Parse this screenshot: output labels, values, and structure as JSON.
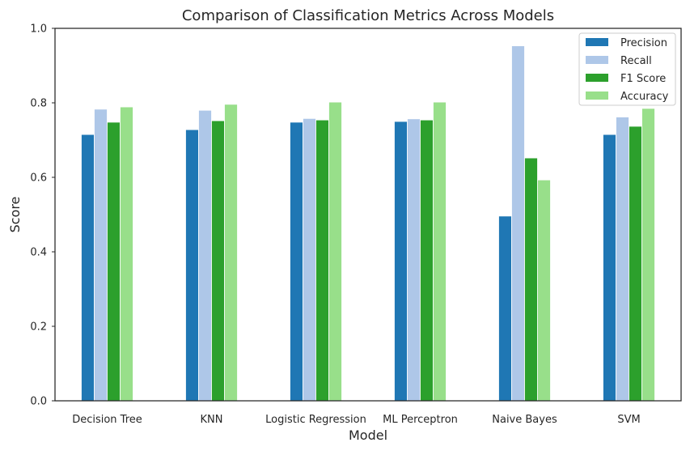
{
  "chart_data": {
    "type": "bar",
    "title": "Comparison of Classification Metrics Across Models",
    "xlabel": "Model",
    "ylabel": "Score",
    "ylim": [
      0,
      1.0
    ],
    "yticks": [
      "0.0",
      "0.2",
      "0.4",
      "0.6",
      "0.8",
      "1.0"
    ],
    "grid": false,
    "legend_position": "top-right",
    "categories": [
      "Decision Tree",
      "KNN",
      "Logistic Regression",
      "ML Perceptron",
      "Naive Bayes",
      "SVM"
    ],
    "series": [
      {
        "name": "Precision",
        "color": "#1f77b4",
        "values": [
          0.715,
          0.728,
          0.748,
          0.75,
          0.496,
          0.715
        ]
      },
      {
        "name": "Recall",
        "color": "#aec7e8",
        "values": [
          0.783,
          0.78,
          0.758,
          0.757,
          0.953,
          0.762
        ]
      },
      {
        "name": "F1 Score",
        "color": "#2ca02c",
        "values": [
          0.748,
          0.752,
          0.754,
          0.754,
          0.652,
          0.737
        ]
      },
      {
        "name": "Accuracy",
        "color": "#98df8a",
        "values": [
          0.789,
          0.796,
          0.802,
          0.802,
          0.593,
          0.785
        ]
      }
    ]
  }
}
